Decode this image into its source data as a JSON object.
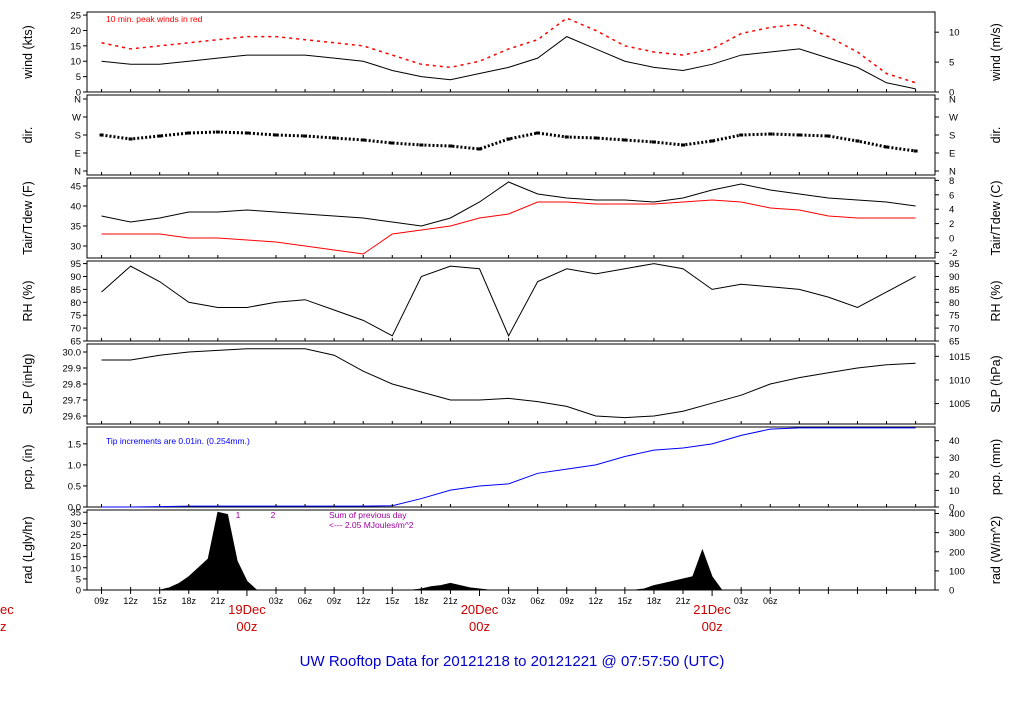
{
  "footer": {
    "title": "UW Rooftop Data for 20121218  to  20121221 @ 07:57:50  (UTC)"
  },
  "time_axis": {
    "ticks": [
      "09z",
      "12z",
      "15z",
      "18z",
      "21z",
      "03z",
      "06z",
      "09z",
      "12z",
      "15z",
      "18z",
      "21z",
      "03z",
      "06z",
      "09z",
      "12z",
      "15z",
      "18z",
      "21z",
      "03z",
      "06z"
    ],
    "day_labels": [
      {
        "date": "19Dec",
        "hour": "00z"
      },
      {
        "date": "20Dec",
        "hour": "00z"
      },
      {
        "date": "21Dec",
        "hour": "00z"
      }
    ],
    "left_partial": {
      "date": "ec",
      "hour": "z"
    }
  },
  "chart_data": [
    {
      "type": "line",
      "id": "wind",
      "ylabel": "wind (kts)",
      "y2label": "wind (m/s)",
      "ylim": [
        0,
        26
      ],
      "yticks": [
        "0",
        "5",
        "10",
        "15",
        "20",
        "25"
      ],
      "y2ticks": [
        "0",
        "5",
        "10"
      ],
      "annotation": "10 min. peak winds in red",
      "series": [
        {
          "role": "avg wind",
          "color": "#000000",
          "x": [
            9,
            12,
            15,
            18,
            21,
            24,
            27,
            30,
            33,
            36,
            39,
            42,
            45,
            48,
            51,
            54,
            57,
            60,
            63,
            66,
            69,
            72,
            75,
            78,
            81,
            84,
            87,
            90,
            93
          ],
          "values": [
            10,
            9,
            9,
            10,
            11,
            12,
            12,
            12,
            11,
            10,
            7,
            5,
            4,
            6,
            8,
            11,
            18,
            14,
            10,
            8,
            7,
            9,
            12,
            13,
            14,
            11,
            8,
            3,
            1
          ]
        },
        {
          "role": "10 min. peak winds",
          "color": "#ff0000",
          "x": [
            9,
            12,
            15,
            18,
            21,
            24,
            27,
            30,
            33,
            36,
            39,
            42,
            45,
            48,
            51,
            54,
            57,
            60,
            63,
            66,
            69,
            72,
            75,
            78,
            81,
            84,
            87,
            90,
            93
          ],
          "values": [
            16,
            14,
            15,
            16,
            17,
            18,
            18,
            17,
            16,
            15,
            12,
            9,
            8,
            10,
            14,
            17,
            24,
            20,
            15,
            13,
            12,
            14,
            19,
            21,
            22,
            18,
            13,
            6,
            3
          ]
        }
      ]
    },
    {
      "type": "scatter",
      "id": "dir",
      "ylabel": "dir.",
      "y2label": "dir.",
      "yticks": [
        "N",
        "E",
        "S",
        "W",
        "N"
      ],
      "y2ticks": [
        "N",
        "E",
        "S",
        "W",
        "N"
      ],
      "ylim": [
        0,
        360
      ],
      "series": [
        {
          "role": "wind direction (deg)",
          "color": "#000000",
          "x": [
            9,
            12,
            15,
            18,
            21,
            24,
            27,
            30,
            33,
            36,
            39,
            42,
            45,
            48,
            51,
            54,
            57,
            60,
            63,
            66,
            69,
            72,
            75,
            78,
            81,
            84,
            87,
            90,
            93
          ],
          "values": [
            180,
            160,
            175,
            190,
            195,
            190,
            180,
            175,
            165,
            155,
            140,
            130,
            125,
            110,
            160,
            190,
            170,
            165,
            155,
            145,
            130,
            150,
            180,
            185,
            180,
            175,
            150,
            120,
            100
          ]
        }
      ]
    },
    {
      "type": "line",
      "id": "temp",
      "ylabel": "Tair/Tdew (F)",
      "y2label": "Tair/Tdew (C)",
      "ylim": [
        27,
        47
      ],
      "yticks": [
        "30",
        "35",
        "40",
        "45"
      ],
      "y2ticks": [
        "-2",
        "0",
        "2",
        "4",
        "6",
        "8"
      ],
      "series": [
        {
          "role": "Tair",
          "color": "#000000",
          "x": [
            9,
            12,
            15,
            18,
            21,
            24,
            27,
            30,
            33,
            36,
            39,
            42,
            45,
            48,
            51,
            54,
            57,
            60,
            63,
            66,
            69,
            72,
            75,
            78,
            81,
            84,
            87,
            90,
            93
          ],
          "values": [
            37.5,
            36,
            37,
            38.5,
            38.5,
            39,
            38.5,
            38,
            37.5,
            37,
            36,
            35,
            37,
            41,
            46,
            43,
            42,
            41.5,
            41.5,
            41,
            42,
            44,
            45.5,
            44,
            43,
            42,
            41.5,
            41,
            40
          ]
        },
        {
          "role": "Tdew",
          "color": "#ff0000",
          "x": [
            9,
            12,
            15,
            18,
            21,
            24,
            27,
            30,
            33,
            36,
            39,
            42,
            45,
            48,
            51,
            54,
            57,
            60,
            63,
            66,
            69,
            72,
            75,
            78,
            81,
            84,
            87,
            90,
            93
          ],
          "values": [
            33,
            33,
            33,
            32,
            32,
            31.5,
            31,
            30,
            29,
            28,
            33,
            34,
            35,
            37,
            38,
            41,
            41,
            40.5,
            40.5,
            40.5,
            41,
            41.5,
            41,
            39.5,
            39,
            37.5,
            37,
            37,
            37
          ]
        }
      ]
    },
    {
      "type": "line",
      "id": "rh",
      "ylabel": "RH (%)",
      "y2label": "RH (%)",
      "ylim": [
        65,
        96
      ],
      "yticks": [
        "65",
        "70",
        "75",
        "80",
        "85",
        "90",
        "95"
      ],
      "y2ticks": [
        "65",
        "70",
        "75",
        "80",
        "85",
        "90",
        "95"
      ],
      "series": [
        {
          "role": "relative humidity",
          "color": "#000000",
          "x": [
            9,
            12,
            15,
            18,
            21,
            24,
            27,
            30,
            33,
            36,
            39,
            42,
            45,
            48,
            51,
            54,
            57,
            60,
            63,
            66,
            69,
            72,
            75,
            78,
            81,
            84,
            87,
            90,
            93
          ],
          "values": [
            84,
            94,
            88,
            80,
            78,
            78,
            80,
            81,
            77,
            73,
            67,
            90,
            94,
            93,
            67,
            88,
            93,
            91,
            93,
            95,
            93,
            85,
            87,
            86,
            85,
            82,
            78,
            84,
            90
          ]
        }
      ]
    },
    {
      "type": "line",
      "id": "slp",
      "ylabel": "SLP (inHg)",
      "y2label": "SLP (hPa)",
      "ylim": [
        29.55,
        30.05
      ],
      "yticks": [
        "29.6",
        "29.7",
        "29.8",
        "29.9",
        "30.0"
      ],
      "y2ticks": [
        "1005",
        "1010",
        "1015"
      ],
      "series": [
        {
          "role": "sea level pressure",
          "color": "#000000",
          "x": [
            9,
            12,
            15,
            18,
            21,
            24,
            27,
            30,
            33,
            36,
            39,
            42,
            45,
            48,
            51,
            54,
            57,
            60,
            63,
            66,
            69,
            72,
            75,
            78,
            81,
            84,
            87,
            90,
            93
          ],
          "values": [
            29.95,
            29.95,
            29.98,
            30.0,
            30.01,
            30.02,
            30.02,
            30.02,
            29.98,
            29.88,
            29.8,
            29.75,
            29.7,
            29.7,
            29.71,
            29.69,
            29.66,
            29.6,
            29.59,
            29.6,
            29.63,
            29.68,
            29.73,
            29.8,
            29.84,
            29.87,
            29.9,
            29.92,
            29.93
          ]
        }
      ]
    },
    {
      "type": "line",
      "id": "pcp",
      "ylabel": "pcp. (in)",
      "y2label": "pcp. (mm)",
      "ylim": [
        0,
        1.9
      ],
      "yticks": [
        "0.0",
        "0.5",
        "1.0",
        "1.5"
      ],
      "y2ticks": [
        "0",
        "10",
        "20",
        "30",
        "40"
      ],
      "annotation": "Tip increments are 0.01in. (0.254mm.)",
      "series": [
        {
          "role": "cumulative precipitation",
          "color": "#0000ff",
          "x": [
            9,
            12,
            15,
            18,
            21,
            24,
            27,
            30,
            33,
            36,
            39,
            42,
            45,
            48,
            51,
            54,
            57,
            60,
            63,
            66,
            69,
            72,
            75,
            78,
            81,
            84,
            87,
            90,
            93
          ],
          "values": [
            0,
            0,
            0.01,
            0.02,
            0.02,
            0.02,
            0.02,
            0.02,
            0.02,
            0.02,
            0.03,
            0.2,
            0.4,
            0.5,
            0.55,
            0.8,
            0.9,
            1.0,
            1.2,
            1.35,
            1.4,
            1.5,
            1.7,
            1.85,
            1.88,
            1.88,
            1.88,
            1.88,
            1.88
          ]
        }
      ]
    },
    {
      "type": "area",
      "id": "rad",
      "ylabel": "rad (Lgly/hr)",
      "y2label": "rad (W/m^2)",
      "ylim": [
        0,
        36
      ],
      "yticks": [
        "0",
        "5",
        "10",
        "15",
        "20",
        "25",
        "30",
        "35"
      ],
      "y2ticks": [
        "0",
        "100",
        "200",
        "300",
        "400"
      ],
      "day_markers": [
        "1",
        "2"
      ],
      "annotation_lines": [
        "Sum of previous day",
        "<--- 2.05 MJoules/m^2"
      ],
      "series": [
        {
          "role": "solar radiation",
          "color": "#000000",
          "x": [
            9,
            12,
            15,
            16,
            17,
            18,
            19,
            20,
            21,
            22,
            23,
            24,
            25,
            39,
            40,
            41,
            42,
            43,
            44,
            45,
            46,
            47,
            48,
            49,
            63,
            64,
            65,
            66,
            67,
            68,
            69,
            70,
            71,
            72,
            73
          ],
          "values": [
            0,
            0,
            0,
            1,
            3,
            6,
            10,
            14,
            35,
            34,
            13,
            4,
            0,
            0,
            0,
            0,
            0.5,
            1.5,
            2,
            3,
            2,
            1,
            0.5,
            0,
            0,
            0,
            0.5,
            2,
            3,
            4,
            5,
            6,
            18,
            6,
            0
          ]
        }
      ]
    }
  ]
}
